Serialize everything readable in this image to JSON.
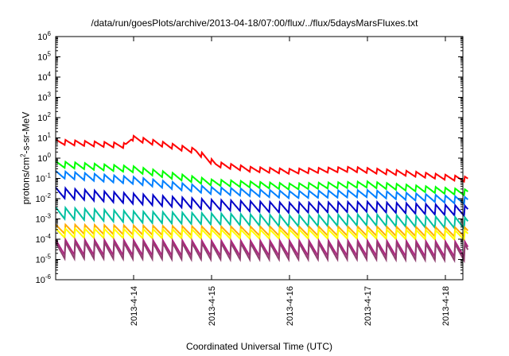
{
  "chart_data": {
    "type": "line",
    "title": "/data/run/goesPlots/archive/2013-04-18/07:00/flux/../flux/5daysMarsFluxes.txt",
    "xlabel": "Coordinated Universal Time (UTC)",
    "ylabel": {
      "pre": "protons/cm",
      "sup": "2",
      "post": "-s-sr-MeV"
    },
    "yscale": "log",
    "ylim": [
      1e-06,
      1000000.0
    ],
    "xlim": [
      "2013-04-13 00:00",
      "2013-04-18 07:00"
    ],
    "ytick_exponents": [
      -6,
      -5,
      -4,
      -3,
      -2,
      -1,
      0,
      1,
      2,
      3,
      4,
      5,
      6
    ],
    "xtick_labels": [
      "2013-4-14",
      "2013-4-15",
      "2013-4-16",
      "2013-4-17",
      "2013-4-18"
    ],
    "xtick_positions_days": [
      1,
      2,
      3,
      4,
      5
    ],
    "x_end_days": 5.29,
    "sawtooth_period_hours": 3,
    "grid": false,
    "legend": "none",
    "series": [
      {
        "color": "#ff0000",
        "log_amplitude": 0.25,
        "envelope": [
          [
            0,
            0.8
          ],
          [
            0.9,
            0.62
          ],
          [
            0.97,
            1.0
          ],
          [
            1.8,
            0.35
          ],
          [
            2.05,
            -0.3
          ],
          [
            2.5,
            -0.55
          ],
          [
            3.0,
            -0.65
          ],
          [
            3.8,
            -0.55
          ],
          [
            4.5,
            -0.75
          ],
          [
            5.29,
            -1.05
          ]
        ]
      },
      {
        "color": "#00ff00",
        "log_amplitude": 0.3,
        "envelope": [
          [
            0,
            -0.3
          ],
          [
            1.0,
            -0.55
          ],
          [
            2.0,
            -1.2
          ],
          [
            3.0,
            -1.4
          ],
          [
            4.0,
            -1.3
          ],
          [
            5.29,
            -1.7
          ]
        ]
      },
      {
        "color": "#0080ff",
        "log_amplitude": 0.35,
        "envelope": [
          [
            0,
            -0.8
          ],
          [
            1.0,
            -1.1
          ],
          [
            2.0,
            -1.6
          ],
          [
            3.0,
            -1.8
          ],
          [
            4.0,
            -1.75
          ],
          [
            5.29,
            -2.1
          ]
        ]
      },
      {
        "color": "#0000c8",
        "log_amplitude": 0.5,
        "envelope": [
          [
            0,
            -1.7
          ],
          [
            1.0,
            -2.0
          ],
          [
            2.0,
            -2.3
          ],
          [
            3.0,
            -2.45
          ],
          [
            4.0,
            -2.4
          ],
          [
            5.29,
            -2.6
          ]
        ]
      },
      {
        "color": "#00c0a0",
        "log_amplitude": 0.55,
        "envelope": [
          [
            0,
            -2.7
          ],
          [
            1.0,
            -2.9
          ],
          [
            2.0,
            -3.0
          ],
          [
            3.0,
            -3.1
          ],
          [
            4.0,
            -3.05
          ],
          [
            5.29,
            -3.2
          ]
        ]
      },
      {
        "color": "#ffaa00",
        "log_amplitude": 0.45,
        "envelope": [
          [
            0,
            -3.5
          ],
          [
            2.0,
            -3.6
          ],
          [
            4.0,
            -3.6
          ],
          [
            5.29,
            -3.65
          ]
        ]
      },
      {
        "color": "#ffff00",
        "log_amplitude": 0.45,
        "envelope": [
          [
            0,
            -3.7
          ],
          [
            2.0,
            -3.75
          ],
          [
            4.0,
            -3.75
          ],
          [
            5.29,
            -3.8
          ]
        ]
      },
      {
        "color": "#b02080",
        "log_amplitude": 0.75,
        "envelope": [
          [
            0,
            -4.4
          ],
          [
            2.0,
            -4.45
          ],
          [
            4.0,
            -4.45
          ],
          [
            5.29,
            -4.5
          ]
        ]
      },
      {
        "color": "#904070",
        "log_amplitude": 0.8,
        "envelope": [
          [
            0,
            -4.55
          ],
          [
            2.0,
            -4.6
          ],
          [
            4.0,
            -4.6
          ],
          [
            5.29,
            -4.65
          ]
        ]
      }
    ]
  }
}
